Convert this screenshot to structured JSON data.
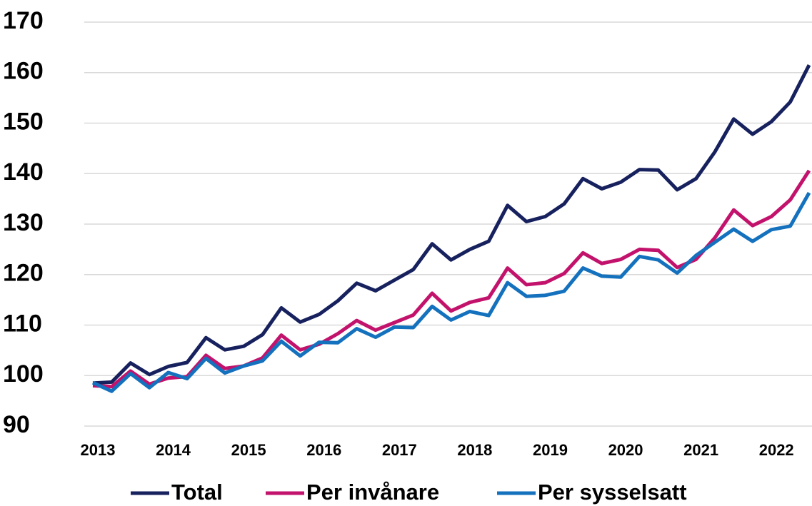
{
  "chart_data": {
    "type": "line",
    "categories": [
      "2013",
      null,
      null,
      null,
      "2014",
      null,
      null,
      null,
      "2015",
      null,
      null,
      null,
      "2016",
      null,
      null,
      null,
      "2017",
      null,
      null,
      null,
      "2018",
      null,
      null,
      null,
      "2019",
      null,
      null,
      null,
      "2020",
      null,
      null,
      null,
      "2021",
      null,
      null,
      null,
      "2022",
      null,
      null
    ],
    "series": [
      {
        "name": "Total",
        "color": "#16215e",
        "values": [
          98.5,
          98.7,
          102.5,
          100.2,
          101.8,
          102.6,
          107.5,
          105.1,
          105.8,
          108.1,
          113.4,
          110.6,
          112.1,
          114.8,
          118.3,
          116.8,
          118.9,
          121,
          126.1,
          122.9,
          125,
          126.6,
          133.7,
          130.5,
          131.5,
          134,
          139,
          137,
          138.3,
          140.8,
          140.7,
          136.8,
          139,
          144.3,
          150.8,
          147.8,
          150.3,
          154.2,
          161.5
        ]
      },
      {
        "name": "Per invånare",
        "color": "#c2126c",
        "values": [
          98,
          97.8,
          100.9,
          98.3,
          99.5,
          99.8,
          104,
          101.4,
          101.9,
          103.5,
          108,
          105.1,
          106.2,
          108.3,
          110.9,
          109,
          110.5,
          112,
          116.3,
          112.8,
          114.5,
          115.4,
          121.3,
          118,
          118.4,
          120.2,
          124.3,
          122.2,
          123,
          125,
          124.8,
          121.4,
          123,
          127.3,
          132.8,
          129.7,
          131.5,
          134.8,
          140.6
        ]
      },
      {
        "name": "Per sysselsatt",
        "color": "#1471bd",
        "values": [
          98.6,
          96.9,
          100.4,
          97.6,
          100.6,
          99.4,
          103.4,
          100.5,
          101.9,
          102.9,
          106.8,
          103.9,
          106.6,
          106.5,
          109.3,
          107.6,
          109.6,
          109.5,
          113.7,
          111,
          112.7,
          111.9,
          118.4,
          115.7,
          115.9,
          116.7,
          121.3,
          119.7,
          119.5,
          123.6,
          122.9,
          120.3,
          123.8,
          126.4,
          129,
          126.6,
          128.9,
          129.6,
          136.2
        ]
      }
    ],
    "ylim": [
      90,
      170
    ],
    "yticks": [
      90,
      100,
      110,
      120,
      130,
      140,
      150,
      160,
      170
    ],
    "grid": true,
    "legend": "bottom"
  }
}
